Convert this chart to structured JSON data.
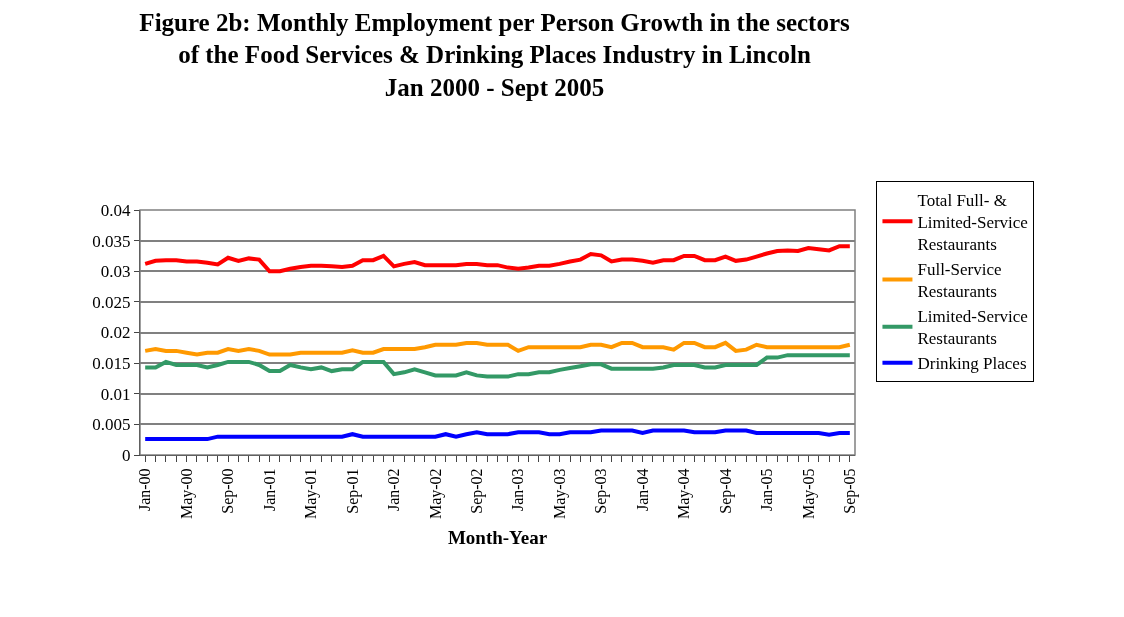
{
  "chart_data": {
    "type": "line",
    "title": "Figure 2b: Monthly Employment per Person Growth in the sectors\nof the Food Services & Drinking Places Industry in Lincoln\nJan 2000 - Sept 2005",
    "xlabel": "Month-Year",
    "categories": [
      "Jan-00",
      null,
      null,
      null,
      "May-00",
      null,
      null,
      null,
      "Sep-00",
      null,
      null,
      null,
      "Jan-01",
      null,
      null,
      null,
      "May-01",
      null,
      null,
      null,
      "Sep-01",
      null,
      null,
      null,
      "Jan-02",
      null,
      null,
      null,
      "May-02",
      null,
      null,
      null,
      "Sep-02",
      null,
      null,
      null,
      "Jan-03",
      null,
      null,
      null,
      "May-03",
      null,
      null,
      null,
      "Sep-03",
      null,
      null,
      null,
      "Jan-04",
      null,
      null,
      null,
      "May-04",
      null,
      null,
      null,
      "Sep-04",
      null,
      null,
      null,
      "Jan-05",
      null,
      null,
      null,
      "May-05",
      null,
      null,
      null,
      "Sep-05"
    ],
    "series": [
      {
        "name": "Total Full- & Limited-Service Restaurants",
        "color": "#ff0000",
        "values": [
          0.0312,
          0.0317,
          0.0318,
          0.0318,
          0.0316,
          0.0316,
          0.0314,
          0.0311,
          0.0322,
          0.0317,
          0.0321,
          0.0319,
          0.03,
          0.03,
          0.0304,
          0.0307,
          0.0309,
          0.0309,
          0.0308,
          0.0307,
          0.0309,
          0.0318,
          0.0318,
          0.0325,
          0.0308,
          0.0312,
          0.0315,
          0.031,
          0.031,
          0.031,
          0.031,
          0.0312,
          0.0312,
          0.031,
          0.031,
          0.0306,
          0.0304,
          0.0306,
          0.0309,
          0.0309,
          0.0312,
          0.0316,
          0.0319,
          0.0328,
          0.0326,
          0.0316,
          0.0319,
          0.0319,
          0.0317,
          0.0314,
          0.0318,
          0.0318,
          0.0325,
          0.0325,
          0.0318,
          0.0318,
          0.0324,
          0.0317,
          0.0319,
          0.0324,
          0.0329,
          0.0333,
          0.0334,
          0.0333,
          0.0338,
          0.0336,
          0.0334,
          0.0341,
          0.0341
        ]
      },
      {
        "name": "Full-Service Restaurants",
        "color": "#ff9900",
        "values": [
          0.017,
          0.0173,
          0.017,
          0.017,
          0.0167,
          0.0164,
          0.0167,
          0.0167,
          0.0173,
          0.017,
          0.0173,
          0.017,
          0.0164,
          0.0164,
          0.0164,
          0.0167,
          0.0167,
          0.0167,
          0.0167,
          0.0167,
          0.0171,
          0.0167,
          0.0167,
          0.0173,
          0.0173,
          0.0173,
          0.0173,
          0.0176,
          0.018,
          0.018,
          0.018,
          0.0183,
          0.0183,
          0.018,
          0.018,
          0.018,
          0.017,
          0.0176,
          0.0176,
          0.0176,
          0.0176,
          0.0176,
          0.0176,
          0.018,
          0.018,
          0.0176,
          0.0183,
          0.0183,
          0.0176,
          0.0176,
          0.0176,
          0.0172,
          0.0183,
          0.0183,
          0.0176,
          0.0176,
          0.0183,
          0.017,
          0.0172,
          0.018,
          0.0176,
          0.0176,
          0.0176,
          0.0176,
          0.0176,
          0.0176,
          0.0176,
          0.0176,
          0.018
        ]
      },
      {
        "name": "Limited-Service Restaurants",
        "color": "#339966",
        "values": [
          0.0143,
          0.0143,
          0.0152,
          0.0147,
          0.0147,
          0.0147,
          0.0143,
          0.0147,
          0.0152,
          0.0152,
          0.0152,
          0.0147,
          0.0137,
          0.0137,
          0.0147,
          0.0143,
          0.014,
          0.0143,
          0.0137,
          0.014,
          0.014,
          0.0152,
          0.0152,
          0.0152,
          0.0132,
          0.0135,
          0.014,
          0.0135,
          0.013,
          0.013,
          0.013,
          0.0135,
          0.013,
          0.0128,
          0.0128,
          0.0128,
          0.0132,
          0.0132,
          0.0135,
          0.0135,
          0.0139,
          0.0142,
          0.0145,
          0.0148,
          0.0148,
          0.0141,
          0.0141,
          0.0141,
          0.0141,
          0.0141,
          0.0143,
          0.0147,
          0.0147,
          0.0147,
          0.0143,
          0.0143,
          0.0147,
          0.0147,
          0.0147,
          0.0147,
          0.0159,
          0.0159,
          0.0163,
          0.0163,
          0.0163,
          0.0163,
          0.0163,
          0.0163,
          0.0163
        ]
      },
      {
        "name": "Drinking Places",
        "color": "#0000ff",
        "values": [
          0.0026,
          0.0026,
          0.0026,
          0.0026,
          0.0026,
          0.0026,
          0.0026,
          0.003,
          0.003,
          0.003,
          0.003,
          0.003,
          0.003,
          0.003,
          0.003,
          0.003,
          0.003,
          0.003,
          0.003,
          0.003,
          0.0034,
          0.003,
          0.003,
          0.003,
          0.003,
          0.003,
          0.003,
          0.003,
          0.003,
          0.0034,
          0.003,
          0.0034,
          0.0037,
          0.0034,
          0.0034,
          0.0034,
          0.0037,
          0.0037,
          0.0037,
          0.0034,
          0.0034,
          0.0037,
          0.0037,
          0.0037,
          0.004,
          0.004,
          0.004,
          0.004,
          0.0036,
          0.004,
          0.004,
          0.004,
          0.004,
          0.0037,
          0.0037,
          0.0037,
          0.004,
          0.004,
          0.004,
          0.0036,
          0.0036,
          0.0036,
          0.0036,
          0.0036,
          0.0036,
          0.0036,
          0.0033,
          0.0036,
          0.0036
        ]
      }
    ],
    "ylim": [
      0,
      0.04
    ],
    "yticks": [
      0,
      0.005,
      0.01,
      0.015,
      0.02,
      0.025,
      0.03,
      0.035,
      0.04
    ],
    "grid": "y",
    "legend": "right",
    "marker": "none",
    "line_style": "solid"
  }
}
